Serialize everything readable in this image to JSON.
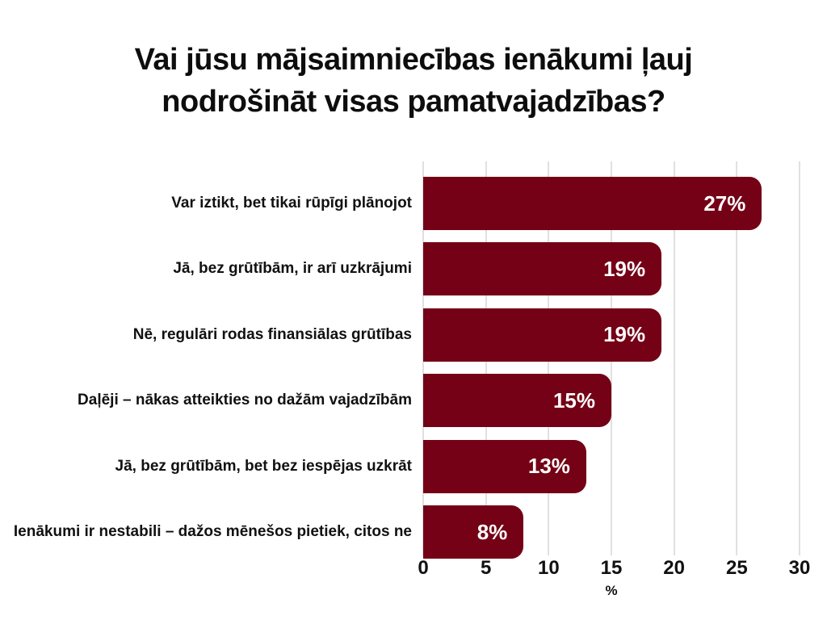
{
  "title": "Vai jūsu mājsaimniecības ienākumi ļauj nodrošināt visas pamatvajadzības?",
  "chart_data": {
    "type": "bar",
    "orientation": "horizontal",
    "title": "Vai jūsu mājsaimniecības ienākumi ļauj nodrošināt visas pamatvajadzības?",
    "categories": [
      "Var iztikt, bet tikai rūpīgi plānojot",
      "Jā, bez grūtībām, ir arī uzkrājumi",
      "Nē, regulāri rodas finansiālas grūtības",
      "Daļēji – nākas atteikties no dažām vajadzībām",
      "Jā, bez grūtībām, bet bez iespējas uzkrāt",
      "Ienākumi ir nestabili – dažos mēnešos pietiek, citos ne"
    ],
    "values": [
      27,
      19,
      19,
      15,
      13,
      8
    ],
    "value_labels": [
      "27%",
      "19%",
      "19%",
      "15%",
      "13%",
      "8%"
    ],
    "xlabel": "%",
    "ylabel": "",
    "xlim": [
      0,
      30
    ],
    "x_ticks": [
      0,
      5,
      10,
      15,
      20,
      25,
      30
    ],
    "grid": true,
    "legend": "none",
    "bar_color": "#740116",
    "value_label_color": "#ffffff",
    "grid_color": "#e0e0e0",
    "text_color": "#111111",
    "background_color": "#ffffff"
  }
}
